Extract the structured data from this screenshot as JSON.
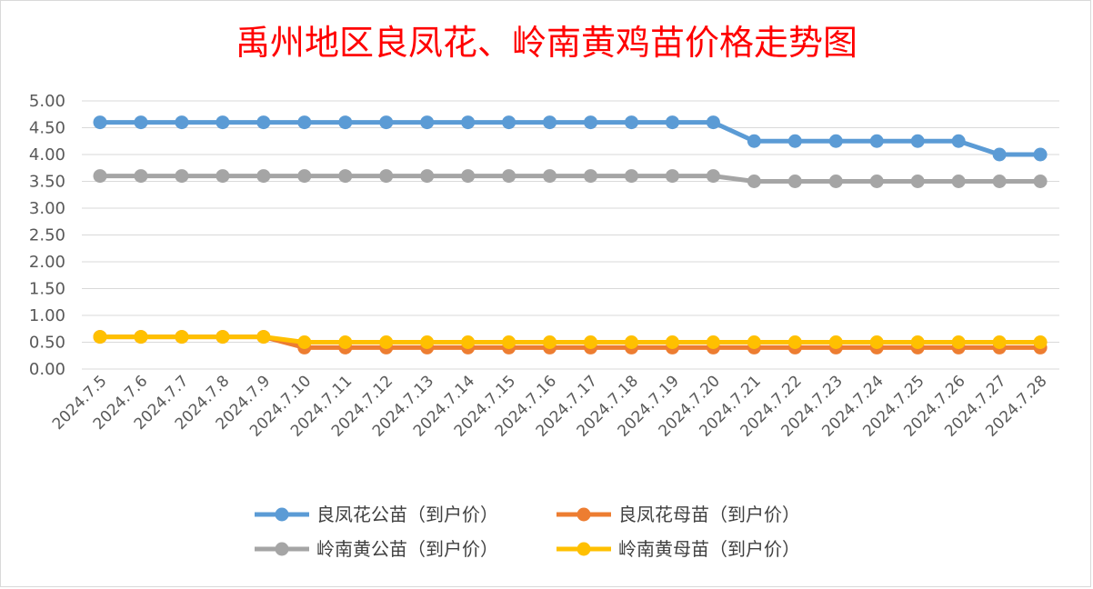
{
  "chart_data": {
    "type": "line",
    "title": "禹州地区良凤花、岭南黄鸡苗价格走势图",
    "xlabel": "",
    "ylabel": "",
    "ylim": [
      0,
      5
    ],
    "ytick_step": 0.5,
    "ytick_labels": [
      "0.00",
      "0.50",
      "1.00",
      "1.50",
      "2.00",
      "2.50",
      "3.00",
      "3.50",
      "4.00",
      "4.50",
      "5.00"
    ],
    "grid": true,
    "legend_position": "bottom",
    "categories": [
      "2024.7.5",
      "2024.7.6",
      "2024.7.7",
      "2024.7.8",
      "2024.7.9",
      "2024.7.10",
      "2024.7.11",
      "2024.7.12",
      "2024.7.13",
      "2024.7.14",
      "2024.7.15",
      "2024.7.16",
      "2024.7.17",
      "2024.7.18",
      "2024.7.19",
      "2024.7.20",
      "2024.7.21",
      "2024.7.22",
      "2024.7.23",
      "2024.7.24",
      "2024.7.25",
      "2024.7.26",
      "2024.7.27",
      "2024.7.28"
    ],
    "series": [
      {
        "name": "良凤花公苗（到户价）",
        "color": "#5b9bd5",
        "values": [
          4.6,
          4.6,
          4.6,
          4.6,
          4.6,
          4.6,
          4.6,
          4.6,
          4.6,
          4.6,
          4.6,
          4.6,
          4.6,
          4.6,
          4.6,
          4.6,
          4.25,
          4.25,
          4.25,
          4.25,
          4.25,
          4.25,
          4.0,
          4.0
        ]
      },
      {
        "name": "良凤花母苗（到户价）",
        "color": "#ed7d31",
        "values": [
          0.6,
          0.6,
          0.6,
          0.6,
          0.6,
          0.4,
          0.4,
          0.4,
          0.4,
          0.4,
          0.4,
          0.4,
          0.4,
          0.4,
          0.4,
          0.4,
          0.4,
          0.4,
          0.4,
          0.4,
          0.4,
          0.4,
          0.4,
          0.4
        ]
      },
      {
        "name": "岭南黄公苗（到户价）",
        "color": "#a5a5a5",
        "values": [
          3.6,
          3.6,
          3.6,
          3.6,
          3.6,
          3.6,
          3.6,
          3.6,
          3.6,
          3.6,
          3.6,
          3.6,
          3.6,
          3.6,
          3.6,
          3.6,
          3.5,
          3.5,
          3.5,
          3.5,
          3.5,
          3.5,
          3.5,
          3.5
        ]
      },
      {
        "name": "岭南黄母苗（到户价）",
        "color": "#ffc000",
        "values": [
          0.6,
          0.6,
          0.6,
          0.6,
          0.6,
          0.5,
          0.5,
          0.5,
          0.5,
          0.5,
          0.5,
          0.5,
          0.5,
          0.5,
          0.5,
          0.5,
          0.5,
          0.5,
          0.5,
          0.5,
          0.5,
          0.5,
          0.5,
          0.5
        ]
      }
    ]
  }
}
